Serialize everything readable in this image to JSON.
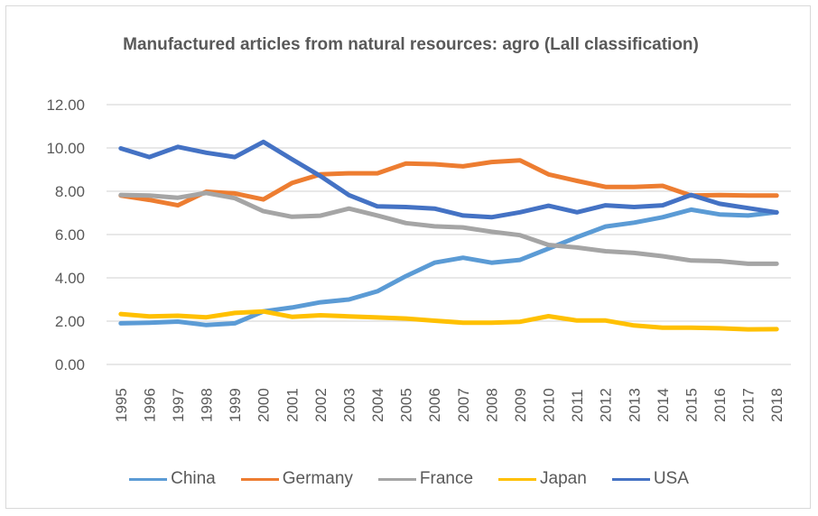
{
  "chart_data": {
    "type": "line",
    "title": "Manufactured articles from natural resources: agro (Lall classification)",
    "xlabel": "",
    "ylabel": "",
    "ylim": [
      0,
      12
    ],
    "yticks": [
      "0.00",
      "2.00",
      "4.00",
      "6.00",
      "8.00",
      "10.00",
      "12.00"
    ],
    "ytick_values": [
      0,
      2,
      4,
      6,
      8,
      10,
      12
    ],
    "grid": true,
    "legend_position": "bottom",
    "x": [
      "1995",
      "1996",
      "1997",
      "1998",
      "1999",
      "2000",
      "2001",
      "2002",
      "2003",
      "2004",
      "2005",
      "2006",
      "2007",
      "2008",
      "2009",
      "2010",
      "2011",
      "2012",
      "2013",
      "2014",
      "2015",
      "2016",
      "2017",
      "2018"
    ],
    "series": [
      {
        "name": "China",
        "color": "#5B9BD5",
        "values": [
          1.9,
          1.93,
          1.98,
          1.82,
          1.9,
          2.45,
          2.63,
          2.87,
          3.0,
          3.38,
          4.08,
          4.7,
          4.93,
          4.7,
          4.83,
          5.35,
          5.88,
          6.37,
          6.55,
          6.8,
          7.15,
          6.93,
          6.88,
          7.03
        ]
      },
      {
        "name": "Germany",
        "color": "#ED7D31",
        "values": [
          7.8,
          7.6,
          7.35,
          7.98,
          7.9,
          7.62,
          8.38,
          8.78,
          8.83,
          8.83,
          9.28,
          9.25,
          9.15,
          9.35,
          9.43,
          8.78,
          8.48,
          8.2,
          8.2,
          8.25,
          7.8,
          7.82,
          7.8,
          7.8
        ]
      },
      {
        "name": "France",
        "color": "#A5A5A5",
        "values": [
          7.83,
          7.8,
          7.7,
          7.92,
          7.68,
          7.08,
          6.82,
          6.87,
          7.2,
          6.88,
          6.53,
          6.38,
          6.33,
          6.13,
          5.97,
          5.52,
          5.4,
          5.23,
          5.15,
          5.0,
          4.8,
          4.77,
          4.65,
          4.65
        ]
      },
      {
        "name": "Japan",
        "color": "#FFC000",
        "values": [
          2.33,
          2.22,
          2.25,
          2.18,
          2.38,
          2.45,
          2.2,
          2.27,
          2.22,
          2.17,
          2.12,
          2.02,
          1.93,
          1.93,
          1.97,
          2.23,
          2.03,
          2.03,
          1.8,
          1.7,
          1.7,
          1.67,
          1.62,
          1.63
        ]
      },
      {
        "name": "USA",
        "color": "#4472C4",
        "values": [
          9.98,
          9.58,
          10.05,
          9.78,
          9.58,
          10.28,
          9.48,
          8.7,
          7.82,
          7.3,
          7.27,
          7.2,
          6.88,
          6.8,
          7.03,
          7.33,
          7.03,
          7.35,
          7.27,
          7.35,
          7.83,
          7.42,
          7.22,
          7.02
        ]
      }
    ]
  }
}
